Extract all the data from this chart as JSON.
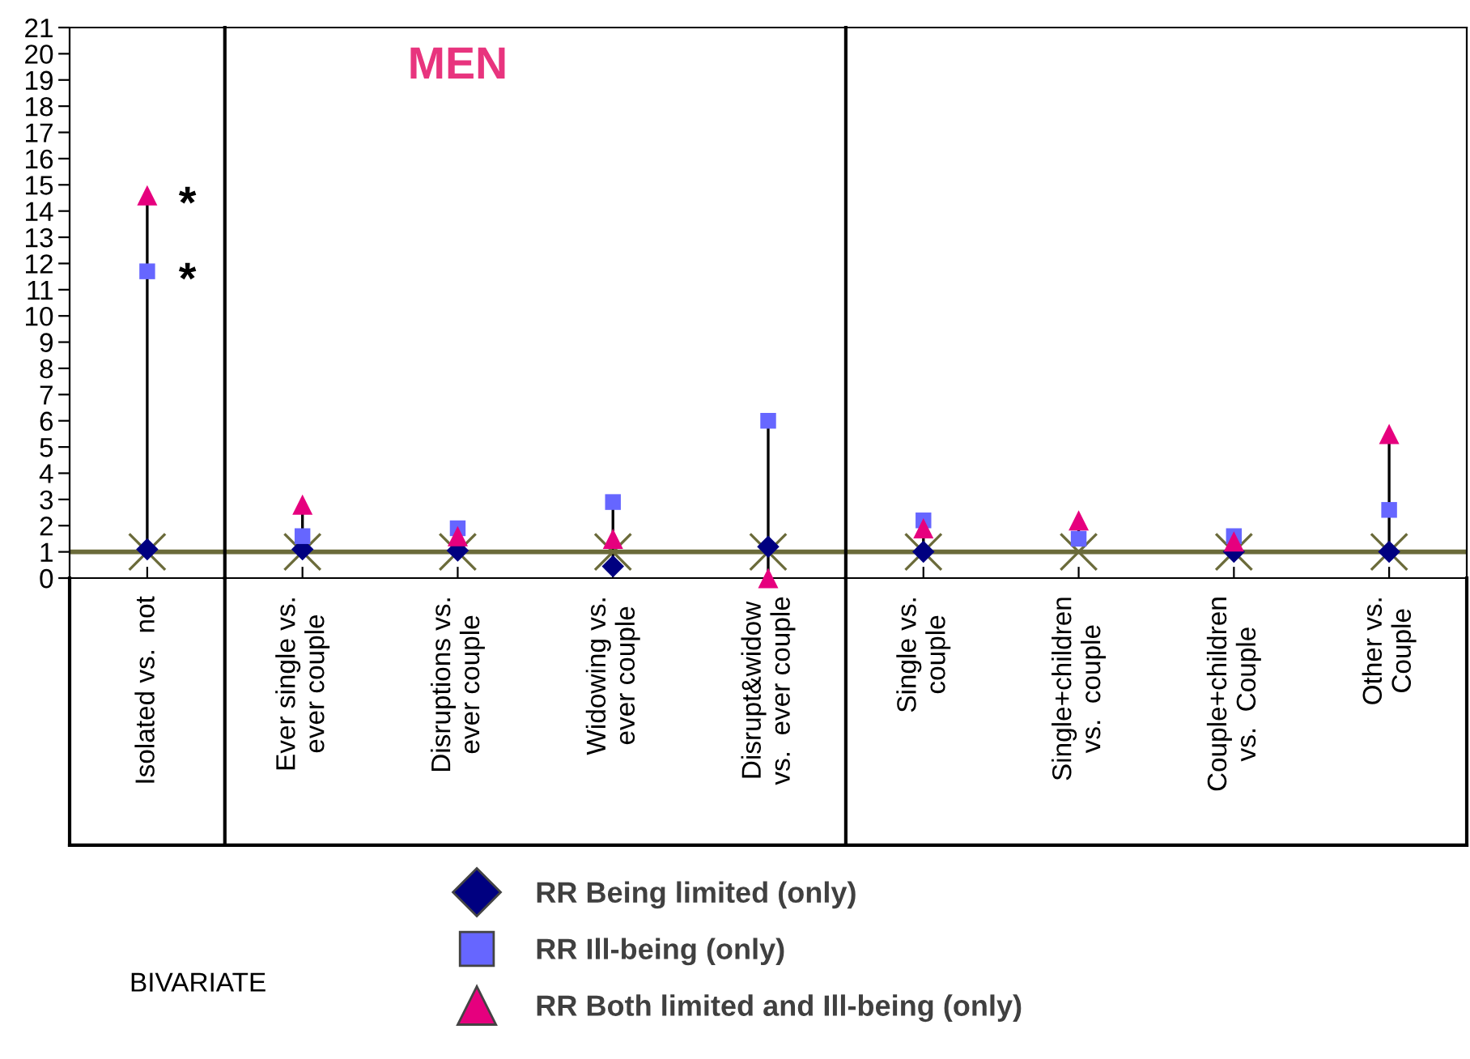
{
  "chart_data": {
    "type": "scatter",
    "title": "MEN",
    "categories": [
      "Isolated vs.  not",
      "Ever single vs.\never couple",
      "Disruptions vs.\never couple",
      "Widowing vs.\never couple",
      "Disrupt&widow\nvs.  ever couple",
      "Single vs.\ncouple",
      "Single+children\nvs.  couple",
      "Couple+children\nvs.  Couple",
      "Other vs.\nCouple"
    ],
    "series": [
      {
        "name": "RR Being limited (only)",
        "color": "#000080",
        "marker": "diamond",
        "values": [
          1.1,
          1.1,
          1.05,
          0.45,
          1.2,
          1.0,
          null,
          1.0,
          1.0
        ]
      },
      {
        "name": "RR Ill-being (only)",
        "color": "#6666ff",
        "marker": "square",
        "values": [
          11.7,
          1.6,
          1.9,
          2.9,
          6.0,
          2.2,
          1.5,
          1.6,
          2.6
        ]
      },
      {
        "name": "RR Both limited and Ill-being (only)",
        "color": "#e6007e",
        "marker": "triangle",
        "values": [
          14.6,
          2.8,
          1.6,
          1.5,
          0.0,
          1.9,
          2.2,
          1.4,
          5.5
        ]
      },
      {
        "color": "#6b6b3a",
        "marker": "cross",
        "values": [
          1,
          1,
          1,
          1,
          1,
          1,
          1,
          1,
          1
        ]
      }
    ],
    "ylim": [
      0,
      21
    ],
    "yticks": [
      0,
      1,
      2,
      3,
      4,
      5,
      6,
      7,
      8,
      9,
      10,
      11,
      12,
      13,
      14,
      15,
      16,
      17,
      18,
      19,
      20,
      21
    ],
    "ref_lines": [
      {
        "axis": "y",
        "value": 1,
        "color": "#6b6b3a"
      }
    ],
    "annotations": [
      {
        "text": "*",
        "x": "Isolated vs.  not",
        "y": 14.6
      },
      {
        "text": "*",
        "x": "Isolated vs.  not",
        "y": 11.7
      },
      "BIVARIATE"
    ],
    "legend": "bottom",
    "grid": false
  }
}
